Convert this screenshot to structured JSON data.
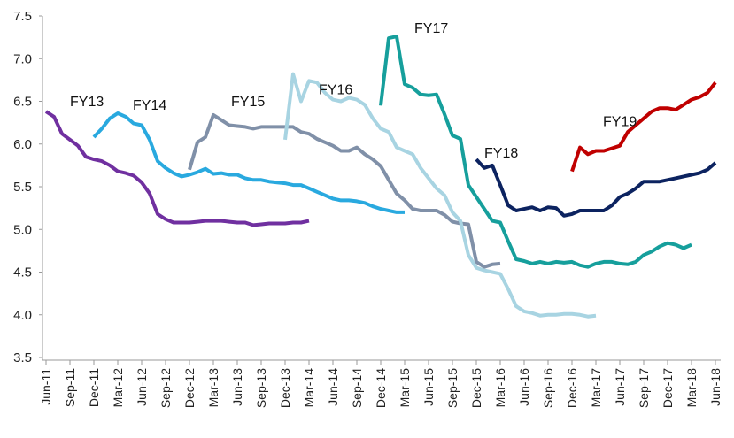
{
  "chart_data": {
    "type": "line",
    "title": "",
    "xlabel": "",
    "ylabel": "",
    "ylim": [
      3.5,
      7.5
    ],
    "yticks": [
      3.5,
      4.0,
      4.5,
      5.0,
      5.5,
      6.0,
      6.5,
      7.0,
      7.5
    ],
    "grid": false,
    "legend": "none (series labelled directly on the lines)",
    "x_categories": [
      "Jun-11",
      "Sep-11",
      "Dec-11",
      "Mar-12",
      "Jun-12",
      "Sep-12",
      "Dec-12",
      "Mar-13",
      "Jun-13",
      "Sep-13",
      "Dec-13",
      "Mar-14",
      "Jun-14",
      "Sep-14",
      "Dec-14",
      "Mar-15",
      "Jun-15",
      "Sep-15",
      "Dec-15",
      "Mar-16",
      "Jun-16",
      "Sep-16",
      "Dec-16",
      "Mar-17",
      "Jun-17",
      "Sep-17",
      "Dec-17",
      "Mar-18",
      "Jun-18"
    ],
    "x_unit": "month",
    "x_start": "Jun-11",
    "series": [
      {
        "name": "FY13",
        "color": "#7030a0",
        "x": [
          "Jun-11",
          "Jul-11",
          "Aug-11",
          "Sep-11",
          "Oct-11",
          "Nov-11",
          "Dec-11",
          "Jan-12",
          "Feb-12",
          "Mar-12",
          "Apr-12",
          "May-12",
          "Jun-12",
          "Jul-12",
          "Aug-12",
          "Sep-12",
          "Oct-12",
          "Nov-12",
          "Dec-12",
          "Jan-13",
          "Feb-13",
          "Mar-13",
          "Apr-13",
          "May-13",
          "Jun-13",
          "Jul-13",
          "Aug-13",
          "Sep-13",
          "Oct-13",
          "Nov-13",
          "Dec-13",
          "Jan-14",
          "Feb-14",
          "Mar-14"
        ],
        "values": [
          6.38,
          6.32,
          6.12,
          6.05,
          5.98,
          5.85,
          5.82,
          5.8,
          5.75,
          5.68,
          5.66,
          5.63,
          5.55,
          5.42,
          5.18,
          5.12,
          5.08,
          5.08,
          5.08,
          5.09,
          5.1,
          5.1,
          5.1,
          5.09,
          5.08,
          5.08,
          5.05,
          5.06,
          5.07,
          5.07,
          5.07,
          5.08,
          5.08,
          5.1
        ]
      },
      {
        "name": "FY14",
        "color": "#29a9df",
        "x": [
          "Dec-11",
          "Jan-12",
          "Feb-12",
          "Mar-12",
          "Apr-12",
          "May-12",
          "Jun-12",
          "Jul-12",
          "Aug-12",
          "Sep-12",
          "Oct-12",
          "Nov-12",
          "Dec-12",
          "Jan-13",
          "Feb-13",
          "Mar-13",
          "Apr-13",
          "May-13",
          "Jun-13",
          "Jul-13",
          "Aug-13",
          "Sep-13",
          "Oct-13",
          "Nov-13",
          "Dec-13",
          "Jan-14",
          "Feb-14",
          "Mar-14",
          "Apr-14",
          "May-14",
          "Jun-14",
          "Jul-14",
          "Aug-14",
          "Sep-14",
          "Oct-14",
          "Nov-14",
          "Dec-14",
          "Jan-15",
          "Feb-15",
          "Mar-15"
        ],
        "values": [
          6.08,
          6.18,
          6.3,
          6.36,
          6.32,
          6.24,
          6.22,
          6.05,
          5.8,
          5.72,
          5.66,
          5.62,
          5.64,
          5.67,
          5.71,
          5.65,
          5.66,
          5.64,
          5.64,
          5.6,
          5.58,
          5.58,
          5.56,
          5.55,
          5.54,
          5.52,
          5.52,
          5.48,
          5.44,
          5.4,
          5.36,
          5.34,
          5.34,
          5.33,
          5.31,
          5.27,
          5.24,
          5.22,
          5.2,
          5.2
        ]
      },
      {
        "name": "FY15",
        "color": "#8090a8",
        "x": [
          "Dec-12",
          "Jan-13",
          "Feb-13",
          "Mar-13",
          "Apr-13",
          "May-13",
          "Jun-13",
          "Jul-13",
          "Aug-13",
          "Sep-13",
          "Oct-13",
          "Nov-13",
          "Dec-13",
          "Jan-14",
          "Feb-14",
          "Mar-14",
          "Apr-14",
          "May-14",
          "Jun-14",
          "Jul-14",
          "Aug-14",
          "Sep-14",
          "Oct-14",
          "Nov-14",
          "Dec-14",
          "Jan-15",
          "Feb-15",
          "Mar-15",
          "Apr-15",
          "May-15",
          "Jun-15",
          "Jul-15",
          "Aug-15",
          "Sep-15",
          "Oct-15",
          "Nov-15",
          "Dec-15",
          "Jan-16",
          "Feb-16",
          "Mar-16"
        ],
        "values": [
          5.7,
          6.02,
          6.08,
          6.34,
          6.28,
          6.22,
          6.21,
          6.2,
          6.18,
          6.2,
          6.2,
          6.2,
          6.2,
          6.2,
          6.14,
          6.12,
          6.06,
          6.02,
          5.98,
          5.92,
          5.92,
          5.96,
          5.88,
          5.82,
          5.74,
          5.58,
          5.42,
          5.34,
          5.24,
          5.22,
          5.22,
          5.22,
          5.17,
          5.09,
          5.07,
          5.06,
          4.62,
          4.56,
          4.59,
          4.6
        ]
      },
      {
        "name": "FY16",
        "color": "#a8d4e2",
        "x": [
          "Dec-13",
          "Jan-14",
          "Feb-14",
          "Mar-14",
          "Apr-14",
          "May-14",
          "Jun-14",
          "Jul-14",
          "Aug-14",
          "Sep-14",
          "Oct-14",
          "Nov-14",
          "Dec-14",
          "Jan-15",
          "Feb-15",
          "Mar-15",
          "Apr-15",
          "May-15",
          "Jun-15",
          "Jul-15",
          "Aug-15",
          "Sep-15",
          "Oct-15",
          "Nov-15",
          "Dec-15",
          "Jan-16",
          "Feb-16",
          "Mar-16",
          "Apr-16",
          "May-16",
          "Jun-16",
          "Jul-16",
          "Aug-16",
          "Sep-16",
          "Oct-16",
          "Nov-16",
          "Dec-16",
          "Jan-17",
          "Feb-17",
          "Mar-17"
        ],
        "values": [
          6.05,
          6.82,
          6.5,
          6.74,
          6.72,
          6.6,
          6.52,
          6.5,
          6.54,
          6.52,
          6.46,
          6.3,
          6.18,
          6.14,
          5.96,
          5.92,
          5.88,
          5.72,
          5.6,
          5.48,
          5.4,
          5.2,
          5.1,
          4.7,
          4.55,
          4.52,
          4.5,
          4.48,
          4.3,
          4.1,
          4.04,
          4.02,
          3.99,
          4.0,
          4.0,
          4.01,
          4.01,
          4.0,
          3.98,
          3.99
        ]
      },
      {
        "name": "FY17",
        "color": "#169f9c",
        "x": [
          "Dec-14",
          "Jan-15",
          "Feb-15",
          "Mar-15",
          "Apr-15",
          "May-15",
          "Jun-15",
          "Jul-15",
          "Aug-15",
          "Sep-15",
          "Oct-15",
          "Nov-15",
          "Dec-15",
          "Jan-16",
          "Feb-16",
          "Mar-16",
          "Apr-16",
          "May-16",
          "Jun-16",
          "Jul-16",
          "Aug-16",
          "Sep-16",
          "Oct-16",
          "Nov-16",
          "Dec-16",
          "Jan-17",
          "Feb-17",
          "Mar-17",
          "Apr-17",
          "May-17",
          "Jun-17",
          "Jul-17",
          "Aug-17",
          "Sep-17",
          "Oct-17",
          "Nov-17",
          "Dec-17",
          "Jan-18",
          "Feb-18",
          "Mar-18"
        ],
        "values": [
          6.45,
          7.24,
          7.26,
          6.7,
          6.66,
          6.58,
          6.57,
          6.58,
          6.35,
          6.1,
          6.06,
          5.52,
          5.38,
          5.24,
          5.1,
          5.08,
          4.86,
          4.65,
          4.63,
          4.6,
          4.62,
          4.6,
          4.62,
          4.61,
          4.62,
          4.58,
          4.56,
          4.6,
          4.62,
          4.62,
          4.6,
          4.59,
          4.62,
          4.7,
          4.74,
          4.8,
          4.84,
          4.82,
          4.78,
          4.82
        ]
      },
      {
        "name": "FY18",
        "color": "#0c2360",
        "x": [
          "Dec-15",
          "Jan-16",
          "Feb-16",
          "Mar-16",
          "Apr-16",
          "May-16",
          "Jun-16",
          "Jul-16",
          "Aug-16",
          "Sep-16",
          "Oct-16",
          "Nov-16",
          "Dec-16",
          "Jan-17",
          "Feb-17",
          "Mar-17",
          "Apr-17",
          "May-17",
          "Jun-17",
          "Jul-17",
          "Aug-17",
          "Sep-17",
          "Oct-17",
          "Nov-17",
          "Dec-17",
          "Jan-18",
          "Feb-18",
          "Mar-18",
          "Apr-18",
          "May-18",
          "Jun-18"
        ],
        "values": [
          5.82,
          5.72,
          5.75,
          5.52,
          5.28,
          5.22,
          5.24,
          5.26,
          5.22,
          5.26,
          5.25,
          5.16,
          5.18,
          5.22,
          5.22,
          5.22,
          5.22,
          5.28,
          5.38,
          5.42,
          5.48,
          5.56,
          5.56,
          5.56,
          5.58,
          5.6,
          5.62,
          5.64,
          5.66,
          5.7,
          5.78
        ]
      },
      {
        "name": "FY19",
        "color": "#c00000",
        "x": [
          "Dec-16",
          "Jan-17",
          "Feb-17",
          "Mar-17",
          "Apr-17",
          "May-17",
          "Jun-17",
          "Jul-17",
          "Aug-17",
          "Sep-17",
          "Oct-17",
          "Nov-17",
          "Dec-17",
          "Jan-18",
          "Feb-18",
          "Mar-18",
          "Apr-18",
          "May-18",
          "Jun-18"
        ],
        "values": [
          5.68,
          5.96,
          5.88,
          5.92,
          5.92,
          5.95,
          5.98,
          6.14,
          6.22,
          6.3,
          6.38,
          6.42,
          6.42,
          6.4,
          6.46,
          6.52,
          6.55,
          6.6,
          6.72
        ]
      }
    ]
  }
}
